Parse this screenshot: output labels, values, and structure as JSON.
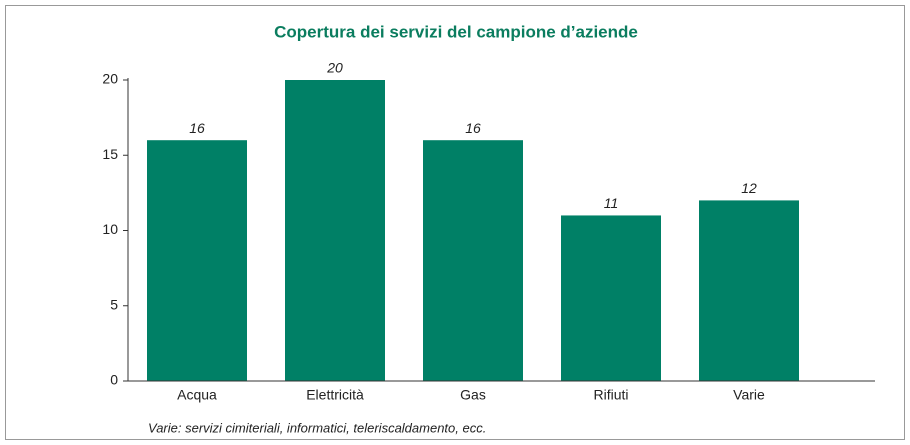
{
  "chart_data": {
    "type": "bar",
    "title": "Copertura dei servizi del campione d’aziende",
    "categories": [
      "Acqua",
      "Elettricità",
      "Gas",
      "Rifiuti",
      "Varie"
    ],
    "values": [
      16,
      20,
      16,
      11,
      12
    ],
    "color": "#008066",
    "ylim": [
      0,
      20
    ],
    "yticks": [
      0,
      5,
      10,
      15,
      20
    ],
    "grid": false,
    "footnote": "Varie: servizi cimiteriali, informatici, teleriscaldamento, ecc."
  }
}
